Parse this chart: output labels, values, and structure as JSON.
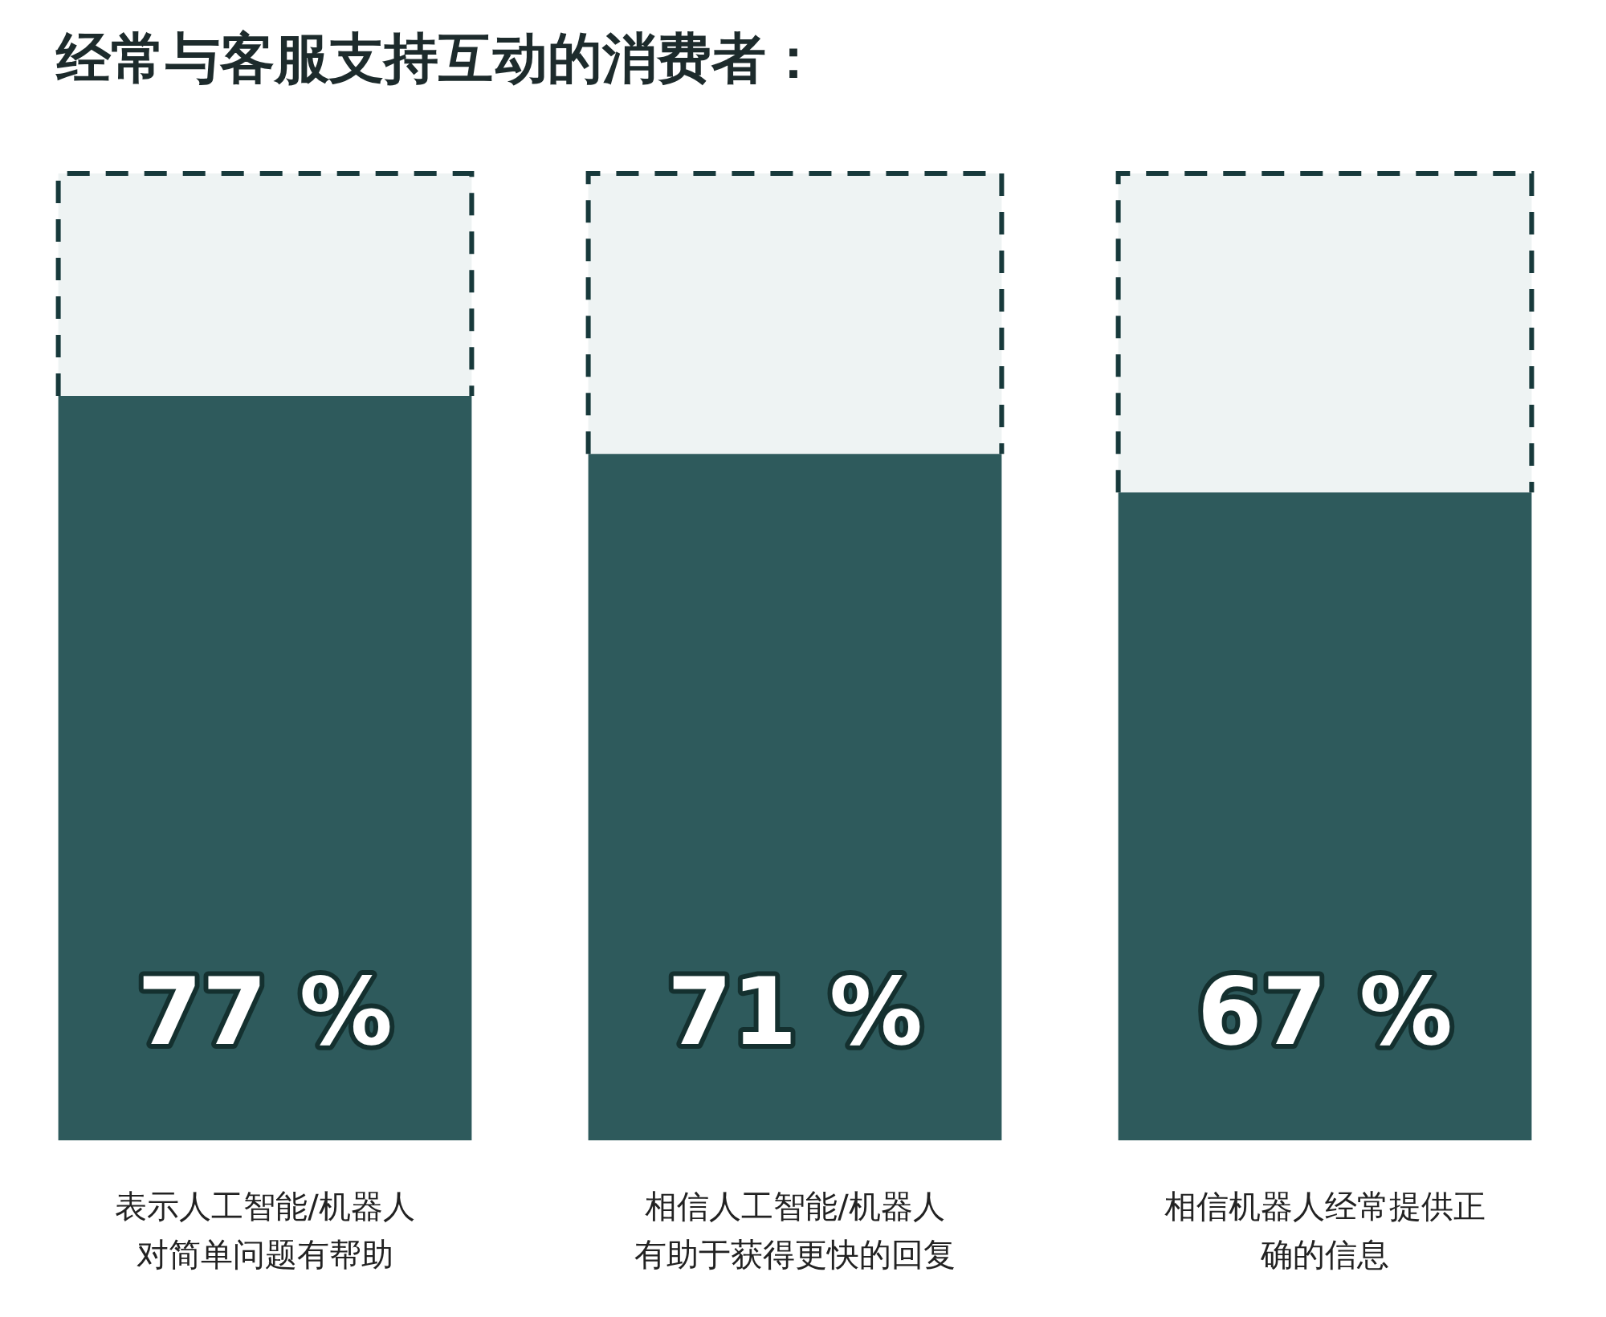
{
  "chart_data": {
    "type": "bar",
    "title": "经常与客服支持互动的消费者：",
    "categories": [
      "表示人工智能/机器人对简单问题有帮助",
      "相信人工智能/机器人有助于获得更快的回复",
      "相信机器人经常提供正确的信息"
    ],
    "series": [
      {
        "color": "#2e5a5c",
        "values": [
          77,
          71,
          67
        ],
        "value_labels": [
          "77 %",
          "71 %",
          "67 %"
        ]
      },
      {
        "color": "#eef3f3",
        "line_style": "dashed",
        "values": [
          23,
          29,
          33
        ]
      }
    ],
    "stacked": true,
    "tick_labels": "x",
    "grid": false,
    "legend": false
  }
}
